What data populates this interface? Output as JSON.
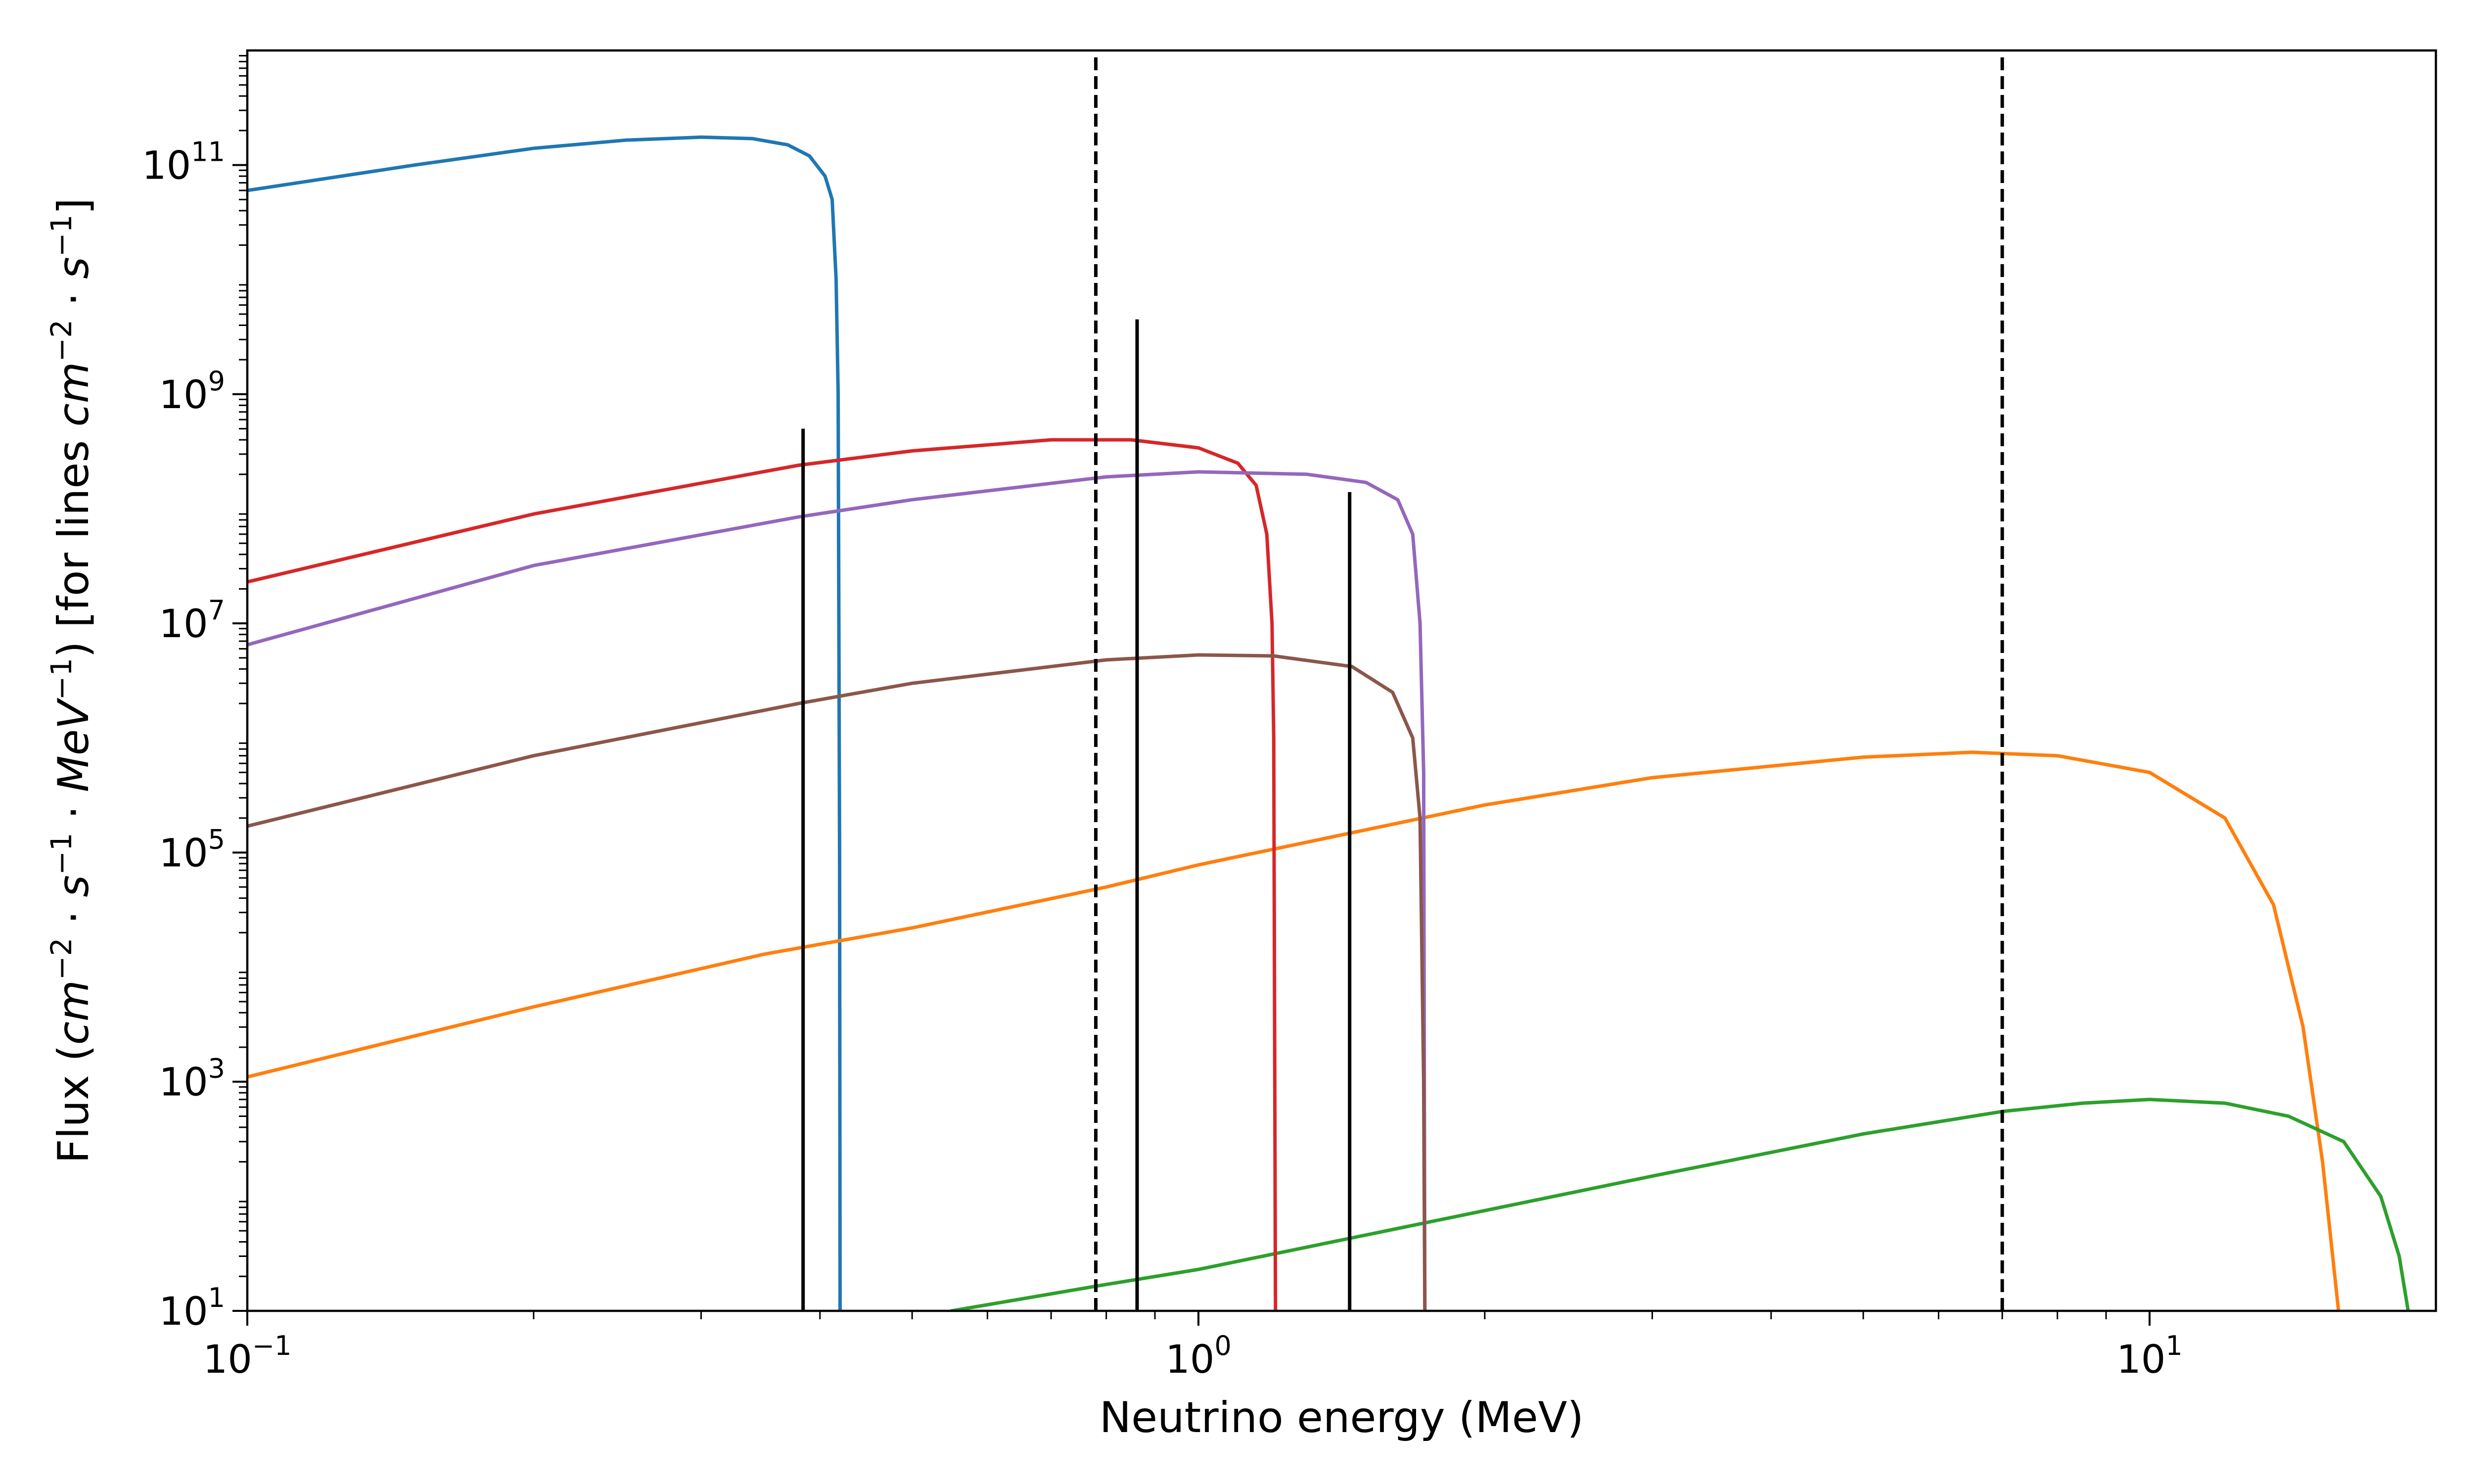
{
  "chart_data": {
    "type": "line",
    "title": "",
    "xlabel": "Neutrino energy (MeV)",
    "ylabel": {
      "parts": [
        {
          "t": "Flux (",
          "s": "n"
        },
        {
          "t": "cm",
          "s": "i"
        },
        {
          "t": "−2",
          "s": "sup"
        },
        {
          "t": " · ",
          "s": "n"
        },
        {
          "t": "s",
          "s": "i"
        },
        {
          "t": "−1",
          "s": "sup"
        },
        {
          "t": " · ",
          "s": "n"
        },
        {
          "t": "MeV",
          "s": "i"
        },
        {
          "t": "−1",
          "s": "sup"
        },
        {
          "t": ") [for lines ",
          "s": "n"
        },
        {
          "t": "cm",
          "s": "i"
        },
        {
          "t": "−2",
          "s": "sup"
        },
        {
          "t": " · ",
          "s": "n"
        },
        {
          "t": "s",
          "s": "i"
        },
        {
          "t": "−1",
          "s": "sup"
        },
        {
          "t": "]",
          "s": "n"
        }
      ]
    },
    "xscale": "log",
    "yscale": "log",
    "xlim": [
      0.1,
      20
    ],
    "ylim": [
      10,
      1000000000000.0
    ],
    "grid": false,
    "legend": "none",
    "xticks": [
      {
        "value": 0.1,
        "base": "10",
        "exp": "−1"
      },
      {
        "value": 1,
        "base": "10",
        "exp": "0"
      },
      {
        "value": 10,
        "base": "10",
        "exp": "1"
      }
    ],
    "yticks": [
      {
        "value": 10,
        "base": "10",
        "exp": "1"
      },
      {
        "value": 1000,
        "base": "10",
        "exp": "3"
      },
      {
        "value": 100000,
        "base": "10",
        "exp": "5"
      },
      {
        "value": 10000000,
        "base": "10",
        "exp": "7"
      },
      {
        "value": 1000000000,
        "base": "10",
        "exp": "9"
      },
      {
        "value": 100000000000,
        "base": "10",
        "exp": "11"
      }
    ],
    "series": [
      {
        "color": "#1f77b4",
        "points": [
          [
            0.1,
            60000000000.0
          ],
          [
            0.15,
            100000000000.0
          ],
          [
            0.2,
            140000000000.0
          ],
          [
            0.25,
            165000000000.0
          ],
          [
            0.3,
            175000000000.0
          ],
          [
            0.34,
            170000000000.0
          ],
          [
            0.37,
            150000000000.0
          ],
          [
            0.39,
            120000000000.0
          ],
          [
            0.405,
            80000000000.0
          ],
          [
            0.412,
            50000000000.0
          ],
          [
            0.416,
            10000000000.0
          ],
          [
            0.418,
            1000000000.0
          ],
          [
            0.4195,
            100000.0
          ],
          [
            0.42,
            10
          ]
        ]
      },
      {
        "color": "#ff7f0e",
        "points": [
          [
            0.1,
            1100.0
          ],
          [
            0.2,
            4500.0
          ],
          [
            0.35,
            13000.0
          ],
          [
            0.5,
            22000.0
          ],
          [
            0.8,
            50000.0
          ],
          [
            1.0,
            78000.0
          ],
          [
            2.0,
            260000.0
          ],
          [
            3.0,
            450000.0
          ],
          [
            5.0,
            680000.0
          ],
          [
            6.5,
            750000.0
          ],
          [
            8.0,
            700000.0
          ],
          [
            10.0,
            500000.0
          ],
          [
            12.0,
            200000.0
          ],
          [
            13.5,
            35000.0
          ],
          [
            14.5,
            3000.0
          ],
          [
            15.2,
            200.0
          ],
          [
            15.8,
            10
          ]
        ]
      },
      {
        "color": "#2ca02c",
        "points": [
          [
            0.55,
            10
          ],
          [
            0.8,
            17
          ],
          [
            1.0,
            23
          ],
          [
            2.0,
            75
          ],
          [
            3.0,
            150
          ],
          [
            5.0,
            350
          ],
          [
            7.0,
            550
          ],
          [
            8.5,
            650
          ],
          [
            10.0,
            700
          ],
          [
            12.0,
            650
          ],
          [
            14.0,
            500
          ],
          [
            16.0,
            300
          ],
          [
            17.5,
            100
          ],
          [
            18.3,
            30
          ],
          [
            18.7,
            10
          ]
        ]
      },
      {
        "color": "#d62728",
        "points": [
          [
            0.1,
            23000000.0
          ],
          [
            0.2,
            90000000.0
          ],
          [
            0.38,
            240000000.0
          ],
          [
            0.5,
            320000000.0
          ],
          [
            0.7,
            400000000.0
          ],
          [
            0.85,
            400000000.0
          ],
          [
            1.0,
            340000000.0
          ],
          [
            1.1,
            250000000.0
          ],
          [
            1.15,
            160000000.0
          ],
          [
            1.18,
            60000000.0
          ],
          [
            1.195,
            10000000.0
          ],
          [
            1.2,
            1000000.0
          ],
          [
            1.205,
            10
          ]
        ]
      },
      {
        "color": "#9467bd",
        "points": [
          [
            0.1,
            6500000.0
          ],
          [
            0.2,
            32000000.0
          ],
          [
            0.38,
            85000000.0
          ],
          [
            0.5,
            120000000.0
          ],
          [
            0.8,
            190000000.0
          ],
          [
            1.0,
            210000000.0
          ],
          [
            1.3,
            200000000.0
          ],
          [
            1.5,
            170000000.0
          ],
          [
            1.62,
            120000000.0
          ],
          [
            1.68,
            60000000.0
          ],
          [
            1.71,
            10000000.0
          ],
          [
            1.725,
            500000.0
          ],
          [
            1.73,
            10
          ]
        ]
      },
      {
        "color": "#8c564b",
        "points": [
          [
            0.1,
            170000.0
          ],
          [
            0.2,
            700000.0
          ],
          [
            0.38,
            2000000.0
          ],
          [
            0.5,
            3000000.0
          ],
          [
            0.8,
            4800000.0
          ],
          [
            1.0,
            5300000.0
          ],
          [
            1.2,
            5200000.0
          ],
          [
            1.45,
            4200000.0
          ],
          [
            1.6,
            2500000.0
          ],
          [
            1.68,
            1000000.0
          ],
          [
            1.71,
            200000.0
          ],
          [
            1.725,
            1000.0
          ],
          [
            1.73,
            10
          ]
        ]
      }
    ],
    "lines": [
      {
        "x": 0.384,
        "top": 500000000.0,
        "style": "solid"
      },
      {
        "x": 0.862,
        "top": 4500000000.0,
        "style": "solid"
      },
      {
        "x": 1.442,
        "top": 140000000.0,
        "style": "solid"
      },
      {
        "x": 0.78,
        "top": 1000000000000.0,
        "style": "dashed"
      },
      {
        "x": 7.0,
        "top": 1000000000000.0,
        "style": "dashed"
      }
    ]
  }
}
